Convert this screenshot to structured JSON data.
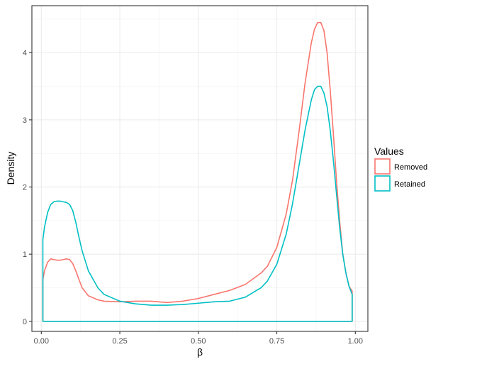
{
  "chart_data": {
    "type": "line",
    "title": "",
    "xlabel": "β",
    "ylabel": "Density",
    "xlim": [
      -0.03,
      1.04
    ],
    "ylim": [
      -0.15,
      4.7
    ],
    "x_ticks": [
      0.0,
      0.25,
      0.5,
      0.75,
      1.0
    ],
    "x_tick_labels": [
      "0.00",
      "0.25",
      "0.50",
      "0.75",
      "1.00"
    ],
    "y_ticks": [
      0,
      1,
      2,
      3,
      4
    ],
    "y_tick_labels": [
      "0",
      "1",
      "2",
      "3",
      "4"
    ],
    "grid": true,
    "legend": {
      "title": "Values",
      "position": "right"
    },
    "series": [
      {
        "name": "Removed",
        "color": "#F8766D",
        "x": [
          0.005,
          0.01,
          0.02,
          0.03,
          0.04,
          0.05,
          0.06,
          0.07,
          0.08,
          0.09,
          0.1,
          0.11,
          0.12,
          0.13,
          0.15,
          0.18,
          0.2,
          0.25,
          0.3,
          0.35,
          0.4,
          0.45,
          0.5,
          0.55,
          0.6,
          0.65,
          0.7,
          0.72,
          0.75,
          0.78,
          0.8,
          0.82,
          0.84,
          0.86,
          0.87,
          0.88,
          0.89,
          0.9,
          0.91,
          0.92,
          0.93,
          0.94,
          0.95,
          0.96,
          0.97,
          0.98,
          0.99
        ],
        "y": [
          0.62,
          0.75,
          0.88,
          0.93,
          0.92,
          0.91,
          0.91,
          0.92,
          0.93,
          0.92,
          0.86,
          0.75,
          0.62,
          0.5,
          0.38,
          0.32,
          0.3,
          0.29,
          0.3,
          0.3,
          0.28,
          0.3,
          0.34,
          0.4,
          0.46,
          0.55,
          0.72,
          0.82,
          1.1,
          1.6,
          2.1,
          2.8,
          3.55,
          4.15,
          4.35,
          4.45,
          4.45,
          4.33,
          4.0,
          3.45,
          2.8,
          2.1,
          1.5,
          1.0,
          0.72,
          0.52,
          0.45
        ]
      },
      {
        "name": "Retained",
        "color": "#00BFC4",
        "x": [
          0.005,
          0.01,
          0.02,
          0.03,
          0.04,
          0.05,
          0.06,
          0.07,
          0.08,
          0.09,
          0.1,
          0.11,
          0.12,
          0.13,
          0.15,
          0.18,
          0.2,
          0.25,
          0.3,
          0.35,
          0.4,
          0.45,
          0.5,
          0.55,
          0.6,
          0.65,
          0.7,
          0.72,
          0.75,
          0.78,
          0.8,
          0.82,
          0.84,
          0.86,
          0.87,
          0.88,
          0.89,
          0.9,
          0.91,
          0.92,
          0.93,
          0.94,
          0.95,
          0.96,
          0.97,
          0.98,
          0.99
        ],
        "y": [
          1.22,
          1.4,
          1.62,
          1.74,
          1.78,
          1.79,
          1.79,
          1.78,
          1.77,
          1.74,
          1.65,
          1.47,
          1.25,
          1.05,
          0.75,
          0.5,
          0.4,
          0.3,
          0.26,
          0.24,
          0.24,
          0.25,
          0.27,
          0.29,
          0.3,
          0.36,
          0.5,
          0.6,
          0.85,
          1.3,
          1.75,
          2.3,
          2.85,
          3.3,
          3.45,
          3.5,
          3.5,
          3.4,
          3.2,
          2.85,
          2.4,
          1.9,
          1.4,
          1.0,
          0.72,
          0.52,
          0.4
        ]
      }
    ]
  }
}
